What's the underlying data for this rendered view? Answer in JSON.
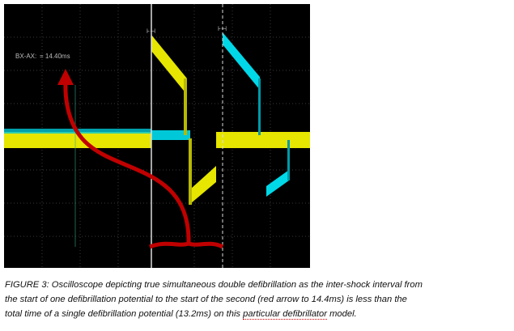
{
  "scope": {
    "measurement_label": "BX-AX:",
    "measurement_value": "= 14.40ms"
  },
  "caption": {
    "lines": [
      "FIGURE 3: Oscilloscope depicting true simultaneous double defibrillation as the inter-shock interval from",
      "the start of one defibrillation potential to the start of the second (red arrow to 14.4ms) is less than the",
      [
        "total time of a single defibrillation potential (13.2ms) on this ",
        "particular defibrillator",
        " model."
      ]
    ]
  }
}
